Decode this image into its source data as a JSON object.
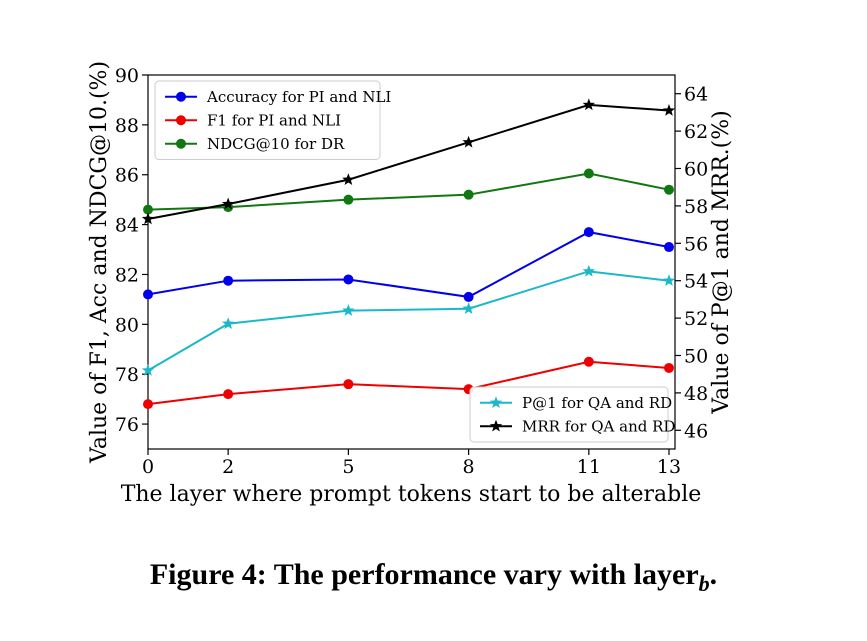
{
  "chart_data": {
    "type": "line",
    "x": [
      0,
      2,
      5,
      8,
      11,
      13
    ],
    "xlabel": "The layer where prompt tokens start to be alterable",
    "ylabel_left": "Value of F1, Acc and NDCG@10.(%)",
    "ylabel_right": "Value of P@1 and MRR.(%)",
    "ylim_left": [
      75,
      90
    ],
    "ylim_right": [
      45,
      65
    ],
    "yticks_left": [
      76,
      78,
      80,
      82,
      84,
      86,
      88,
      90
    ],
    "yticks_right": [
      46,
      48,
      50,
      52,
      54,
      56,
      58,
      60,
      62,
      64
    ],
    "xticks": [
      0,
      2,
      5,
      8,
      11,
      13
    ],
    "grid": false,
    "series": [
      {
        "name": "Accuracy for PI and NLI",
        "axis": "left",
        "color": "#0000ee",
        "marker": "circle",
        "values": [
          81.2,
          81.75,
          81.8,
          81.1,
          83.7,
          83.1
        ]
      },
      {
        "name": "F1 for PI and NLI",
        "axis": "left",
        "color": "#ee0000",
        "marker": "circle",
        "values": [
          76.8,
          77.2,
          77.6,
          77.4,
          78.5,
          78.25
        ]
      },
      {
        "name": "NDCG@10 for DR",
        "axis": "left",
        "color": "#117711",
        "marker": "circle",
        "values": [
          84.6,
          84.7,
          85.0,
          85.2,
          86.05,
          85.4
        ]
      },
      {
        "name": "P@1 for QA and RD",
        "axis": "right",
        "color": "#1ab8c8",
        "marker": "star",
        "values": [
          49.2,
          51.7,
          52.4,
          52.5,
          54.5,
          54.0
        ]
      },
      {
        "name": "MRR for QA and RD",
        "axis": "right",
        "color": "#000000",
        "marker": "star",
        "values": [
          57.3,
          58.1,
          59.4,
          61.4,
          63.4,
          63.1
        ]
      }
    ],
    "legends": [
      {
        "placement": "top-left",
        "series": [
          0,
          1,
          2
        ]
      },
      {
        "placement": "bottom-right",
        "series": [
          3,
          4
        ]
      }
    ]
  },
  "caption": {
    "prefix": "Figure 4: The performance vary with layer",
    "subscript": "b",
    "suffix": "."
  }
}
